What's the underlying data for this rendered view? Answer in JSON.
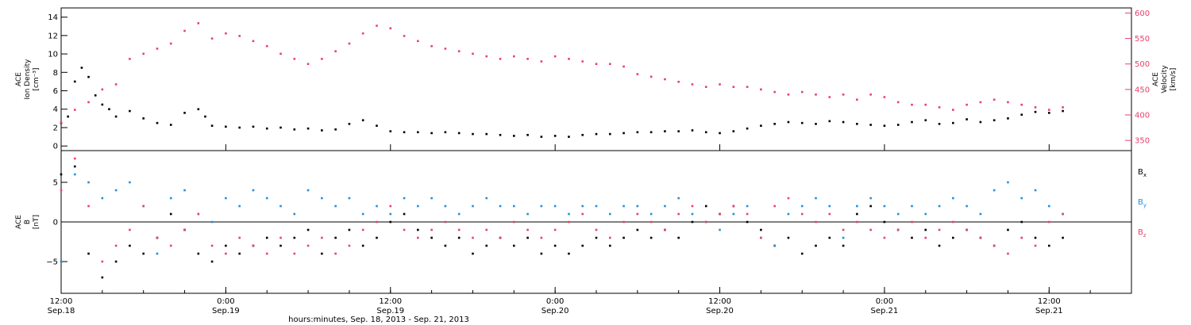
{
  "colors": {
    "density": "#000000",
    "velocity": "#e8416a",
    "bx": "#000000",
    "by": "#1f8fe0",
    "bz": "#e8416a",
    "axis": "#000000"
  },
  "time": {
    "caption": "hours:minutes, Sep. 18, 2013 - Sep. 21, 2013",
    "start_hours": 12,
    "end_hours": 90,
    "ticks": [
      {
        "hours": 12,
        "time": "12:00",
        "date": "Sep.18"
      },
      {
        "hours": 24,
        "time": "0:00",
        "date": "Sep.19"
      },
      {
        "hours": 36,
        "time": "12:00",
        "date": "Sep.19"
      },
      {
        "hours": 48,
        "time": "0:00",
        "date": "Sep.20"
      },
      {
        "hours": 60,
        "time": "12:00",
        "date": "Sep.20"
      },
      {
        "hours": 72,
        "time": "0:00",
        "date": "Sep.21"
      },
      {
        "hours": 84,
        "time": "12:00",
        "date": "Sep.21"
      }
    ]
  },
  "chart_data": [
    {
      "type": "scatter",
      "panel": "top",
      "ylabel_left": [
        "ACE",
        "Ion Density",
        "[cm⁻³]"
      ],
      "ylabel_right": [
        "ACE",
        "Velocity",
        "[km/s]"
      ],
      "ylim_left": [
        -0.5,
        15
      ],
      "yticks_left": [
        0,
        2,
        4,
        6,
        8,
        10,
        12,
        14
      ],
      "ylim_right": [
        330,
        610
      ],
      "yticks_right": [
        350,
        400,
        450,
        500,
        550,
        600
      ],
      "series": [
        {
          "key": "density",
          "axis": "left",
          "x": [
            12,
            12.5,
            13,
            13.5,
            14,
            14.5,
            15,
            15.5,
            16,
            17,
            18,
            19,
            20,
            21,
            22,
            22.5,
            23,
            24,
            25,
            26,
            27,
            28,
            29,
            30,
            31,
            32,
            33,
            34,
            35,
            36,
            37,
            38,
            39,
            40,
            41,
            42,
            43,
            44,
            45,
            46,
            47,
            48,
            49,
            50,
            51,
            52,
            53,
            54,
            55,
            56,
            57,
            58,
            59,
            60,
            61,
            62,
            63,
            64,
            65,
            66,
            67,
            68,
            69,
            70,
            71,
            72,
            73,
            74,
            75,
            76,
            77,
            78,
            79,
            80,
            81,
            82,
            83,
            84,
            85
          ],
          "y": [
            2.5,
            3.2,
            7.0,
            8.5,
            7.5,
            5.5,
            4.5,
            4.0,
            3.2,
            3.8,
            3.0,
            2.5,
            2.3,
            3.6,
            4.0,
            3.2,
            2.2,
            2.1,
            2.0,
            2.1,
            1.9,
            2.0,
            1.8,
            1.9,
            1.7,
            1.8,
            2.4,
            2.8,
            2.2,
            1.6,
            1.5,
            1.5,
            1.4,
            1.5,
            1.4,
            1.3,
            1.3,
            1.2,
            1.1,
            1.2,
            1.0,
            1.1,
            1.0,
            1.2,
            1.3,
            1.3,
            1.4,
            1.5,
            1.5,
            1.6,
            1.6,
            1.7,
            1.5,
            1.4,
            1.6,
            1.9,
            2.2,
            2.4,
            2.6,
            2.5,
            2.4,
            2.7,
            2.6,
            2.4,
            2.3,
            2.2,
            2.3,
            2.6,
            2.8,
            2.4,
            2.5,
            2.9,
            2.6,
            2.8,
            3.0,
            3.4,
            3.7,
            3.6,
            3.8
          ]
        },
        {
          "key": "velocity",
          "axis": "right",
          "x": [
            12,
            13,
            14,
            15,
            16,
            17,
            18,
            19,
            20,
            21,
            22,
            23,
            24,
            25,
            26,
            27,
            28,
            29,
            30,
            31,
            32,
            33,
            34,
            35,
            36,
            37,
            38,
            39,
            40,
            41,
            42,
            43,
            44,
            45,
            46,
            47,
            48,
            49,
            50,
            51,
            52,
            53,
            54,
            55,
            56,
            57,
            58,
            59,
            60,
            61,
            62,
            63,
            64,
            65,
            66,
            67,
            68,
            69,
            70,
            71,
            72,
            73,
            74,
            75,
            76,
            77,
            78,
            79,
            80,
            81,
            82,
            83,
            84,
            85
          ],
          "y": [
            385,
            410,
            425,
            450,
            460,
            510,
            520,
            530,
            540,
            565,
            580,
            550,
            560,
            555,
            545,
            535,
            520,
            510,
            500,
            510,
            525,
            540,
            560,
            575,
            570,
            555,
            545,
            535,
            530,
            525,
            520,
            515,
            510,
            515,
            510,
            505,
            515,
            510,
            505,
            500,
            500,
            495,
            480,
            475,
            470,
            465,
            460,
            455,
            460,
            455,
            455,
            450,
            445,
            440,
            445,
            440,
            435,
            440,
            430,
            440,
            435,
            425,
            420,
            420,
            415,
            410,
            420,
            425,
            430,
            425,
            420,
            415,
            410,
            415
          ]
        }
      ]
    },
    {
      "type": "scatter",
      "panel": "bottom",
      "ylabel_left": [
        "ACE",
        "B",
        "[nT]"
      ],
      "ylim_left": [
        -9,
        9
      ],
      "yticks_left": [
        -5,
        0,
        5
      ],
      "zero_line": true,
      "series": [
        {
          "key": "bx",
          "label": "B",
          "sub": "x",
          "x": [
            12,
            13,
            14,
            15,
            16,
            17,
            18,
            19,
            20,
            21,
            22,
            23,
            24,
            25,
            26,
            27,
            28,
            29,
            30,
            31,
            32,
            33,
            34,
            35,
            36,
            37,
            38,
            39,
            40,
            41,
            42,
            43,
            44,
            45,
            46,
            47,
            48,
            49,
            50,
            51,
            52,
            53,
            54,
            55,
            56,
            57,
            58,
            59,
            60,
            61,
            62,
            63,
            64,
            65,
            66,
            67,
            68,
            69,
            70,
            71,
            72,
            73,
            74,
            75,
            76,
            77,
            78,
            79,
            80,
            81,
            82,
            83,
            84,
            85
          ],
          "y": [
            6,
            7,
            -4,
            -7,
            -5,
            -3,
            -4,
            -2,
            1,
            -1,
            -4,
            -5,
            -3,
            -4,
            -3,
            -2,
            -3,
            -2,
            -1,
            -4,
            -2,
            -1,
            -3,
            -2,
            0,
            1,
            -1,
            -2,
            -3,
            -2,
            -4,
            -3,
            -2,
            -3,
            -2,
            -4,
            -3,
            -4,
            -3,
            -2,
            -3,
            -2,
            -1,
            -2,
            -1,
            -2,
            0,
            2,
            1,
            2,
            0,
            -1,
            -3,
            -2,
            -4,
            -3,
            -2,
            -3,
            1,
            2,
            0,
            -1,
            -2,
            -1,
            -3,
            -2,
            -1,
            -2,
            -3,
            -1,
            0,
            -2,
            -3,
            -2
          ]
        },
        {
          "key": "by",
          "label": "B",
          "sub": "y",
          "x": [
            12,
            13,
            14,
            15,
            16,
            17,
            18,
            19,
            20,
            21,
            22,
            23,
            24,
            25,
            26,
            27,
            28,
            29,
            30,
            31,
            32,
            33,
            34,
            35,
            36,
            37,
            38,
            39,
            40,
            41,
            42,
            43,
            44,
            45,
            46,
            47,
            48,
            49,
            50,
            51,
            52,
            53,
            54,
            55,
            56,
            57,
            58,
            59,
            60,
            61,
            62,
            63,
            64,
            65,
            66,
            67,
            68,
            69,
            70,
            71,
            72,
            73,
            74,
            75,
            76,
            77,
            78,
            79,
            80,
            81,
            82,
            83,
            84,
            85
          ],
          "y": [
            -5,
            6,
            5,
            3,
            4,
            5,
            2,
            -4,
            3,
            4,
            1,
            0,
            3,
            2,
            4,
            3,
            2,
            1,
            4,
            3,
            2,
            3,
            1,
            2,
            1,
            3,
            2,
            3,
            2,
            1,
            2,
            3,
            2,
            2,
            1,
            2,
            2,
            1,
            2,
            2,
            1,
            2,
            2,
            1,
            2,
            3,
            1,
            0,
            -1,
            1,
            2,
            -2,
            -3,
            1,
            2,
            3,
            2,
            -2,
            2,
            3,
            2,
            1,
            2,
            1,
            2,
            3,
            2,
            1,
            4,
            5,
            3,
            4,
            2,
            1
          ]
        },
        {
          "key": "bz",
          "label": "B",
          "sub": "z",
          "x": [
            12,
            13,
            14,
            15,
            16,
            17,
            18,
            19,
            20,
            21,
            22,
            23,
            24,
            25,
            26,
            27,
            28,
            29,
            30,
            31,
            32,
            33,
            34,
            35,
            36,
            37,
            38,
            39,
            40,
            41,
            42,
            43,
            44,
            45,
            46,
            47,
            48,
            49,
            50,
            51,
            52,
            53,
            54,
            55,
            56,
            57,
            58,
            59,
            60,
            61,
            62,
            63,
            64,
            65,
            66,
            67,
            68,
            69,
            70,
            71,
            72,
            73,
            74,
            75,
            76,
            77,
            78,
            79,
            80,
            81,
            82,
            83,
            84,
            85
          ],
          "y": [
            4,
            8,
            2,
            -5,
            -3,
            -1,
            2,
            -2,
            -3,
            -1,
            1,
            -3,
            -4,
            -2,
            -3,
            -4,
            -2,
            -4,
            -3,
            -2,
            -4,
            -3,
            -1,
            0,
            2,
            -1,
            -2,
            -1,
            0,
            -1,
            -2,
            -1,
            -2,
            0,
            -1,
            -2,
            -1,
            0,
            1,
            -1,
            -2,
            0,
            1,
            0,
            -1,
            1,
            2,
            0,
            1,
            2,
            1,
            -2,
            2,
            3,
            1,
            0,
            1,
            -1,
            0,
            -1,
            -2,
            -1,
            0,
            -2,
            -1,
            0,
            -1,
            -2,
            -3,
            -4,
            -2,
            -3,
            0,
            1
          ]
        }
      ]
    }
  ]
}
